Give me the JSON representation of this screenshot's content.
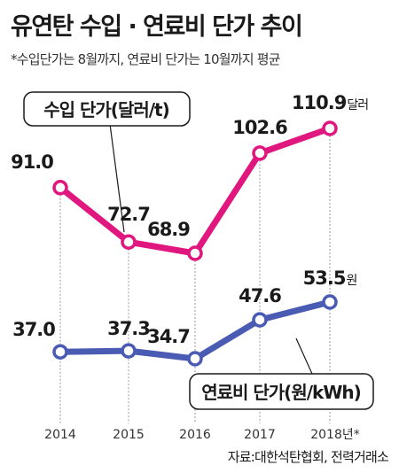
{
  "chart_data": {
    "type": "line",
    "title": "유연탄 수입 · 연료비 단가 추이",
    "subtitle": "*수입단가는 8월까지, 연료비 단가는 10월까지 평균",
    "source": "자료:대한석탄협회, 전력거래소",
    "categories": [
      "2014",
      "2015",
      "2016",
      "2017",
      "2018년*"
    ],
    "series": [
      {
        "name": "수입 단가(달러/t)",
        "values": [
          91.0,
          72.7,
          68.9,
          102.6,
          110.9
        ],
        "labels": [
          "91.0",
          "72.7",
          "68.9",
          "102.6",
          "110.9"
        ],
        "last_unit": "달러",
        "color": "#e0177e"
      },
      {
        "name": "연료비 단가(원/kWh)",
        "values": [
          37.0,
          37.3,
          34.7,
          47.6,
          53.5
        ],
        "labels": [
          "37.0",
          "37.3",
          "34.7",
          "47.6",
          "53.5"
        ],
        "last_unit": "원",
        "color": "#4a5bb4"
      }
    ],
    "grid": false,
    "legend": "callout boxes"
  }
}
